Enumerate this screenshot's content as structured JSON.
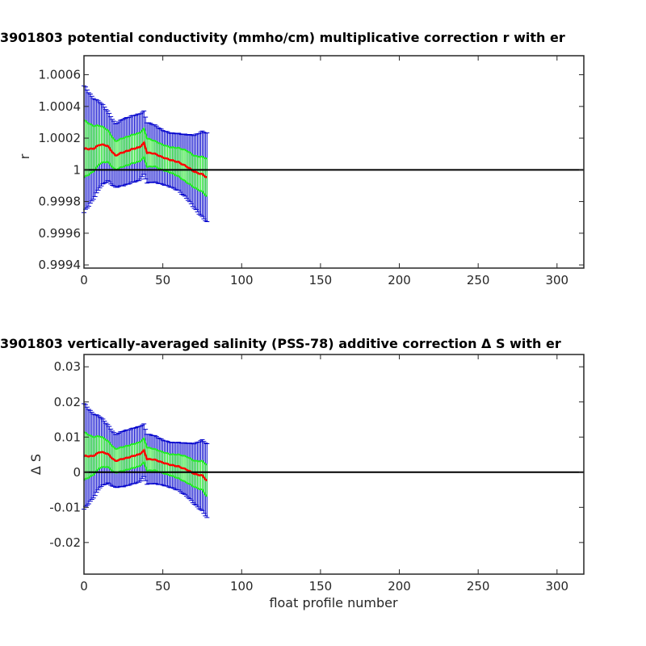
{
  "chart_data": [
    {
      "type": "line",
      "title": "3901803 potential conductivity (mmho/cm) multiplicative correction r with er",
      "xlabel": "",
      "ylabel": "r",
      "xlim": [
        0,
        317
      ],
      "ylim": [
        0.99938,
        1.00072
      ],
      "xticks": [
        0,
        50,
        100,
        150,
        200,
        250,
        300
      ],
      "yticks": [
        0.9994,
        0.9996,
        0.9998,
        1,
        1.0002,
        1.0004,
        1.0006
      ],
      "ytick_labels": [
        "0.9994",
        "0.9996",
        "0.9998",
        "1",
        "1.0002",
        "1.0004",
        "1.0006"
      ],
      "reference_line": 1,
      "series": [
        {
          "color": "#ff0000",
          "x": [
            0,
            5,
            10,
            15,
            20,
            25,
            30,
            35,
            38,
            40,
            45,
            50,
            55,
            60,
            65,
            70,
            75,
            78
          ],
          "y": [
            1.00013,
            1.00013,
            1.00016,
            1.00015,
            1.00009,
            1.00011,
            1.00013,
            1.00014,
            1.00017,
            1.00011,
            1.0001,
            1.00008,
            1.00006,
            1.00005,
            1.00002,
            0.99999,
            0.99997,
            0.99995
          ],
          "err_narrow": [
            0.00018,
            0.00015,
            0.00012,
            0.0001,
            9e-05,
            9e-05,
            9e-05,
            9e-05,
            9e-05,
            9e-05,
            8e-05,
            8e-05,
            8e-05,
            9e-05,
            0.0001,
            0.0001,
            0.00011,
            0.00012
          ],
          "err_wide": [
            0.0004,
            0.00033,
            0.00027,
            0.00022,
            0.0002,
            0.00021,
            0.00021,
            0.00021,
            0.0002,
            0.00019,
            0.00018,
            0.00017,
            0.00017,
            0.00018,
            0.0002,
            0.00023,
            0.00027,
            0.00028
          ]
        }
      ]
    },
    {
      "type": "line",
      "title": "3901803 vertically-averaged salinity (PSS-78) additive correction Δ S with er",
      "xlabel": "float profile number",
      "ylabel": "Δ S",
      "xlim": [
        0,
        317
      ],
      "ylim": [
        -0.029,
        0.0335
      ],
      "xticks": [
        0,
        50,
        100,
        150,
        200,
        250,
        300
      ],
      "yticks": [
        -0.02,
        -0.01,
        0,
        0.01,
        0.02,
        0.03
      ],
      "ytick_labels": [
        "-0.02",
        "-0.01",
        "0",
        "0.01",
        "0.02",
        "0.03"
      ],
      "reference_line": 0,
      "series": [
        {
          "color": "#ff0000",
          "x": [
            0,
            5,
            10,
            15,
            20,
            25,
            30,
            35,
            38,
            40,
            45,
            50,
            55,
            60,
            65,
            70,
            75,
            78
          ],
          "y": [
            0.0045,
            0.0045,
            0.0058,
            0.0052,
            0.0032,
            0.0038,
            0.0045,
            0.005,
            0.0062,
            0.0038,
            0.0035,
            0.0028,
            0.002,
            0.0017,
            0.0007,
            -0.0004,
            -0.001,
            -0.0025
          ],
          "err_narrow": [
            0.0068,
            0.0056,
            0.0045,
            0.0037,
            0.0034,
            0.0034,
            0.0034,
            0.0034,
            0.0034,
            0.0033,
            0.003,
            0.003,
            0.003,
            0.0034,
            0.0037,
            0.0037,
            0.0041,
            0.0045
          ],
          "err_wide": [
            0.015,
            0.0124,
            0.0101,
            0.0083,
            0.0075,
            0.0079,
            0.0079,
            0.0079,
            0.0075,
            0.0071,
            0.0068,
            0.0064,
            0.0064,
            0.0068,
            0.0075,
            0.0086,
            0.0101,
            0.0105
          ]
        }
      ]
    }
  ]
}
